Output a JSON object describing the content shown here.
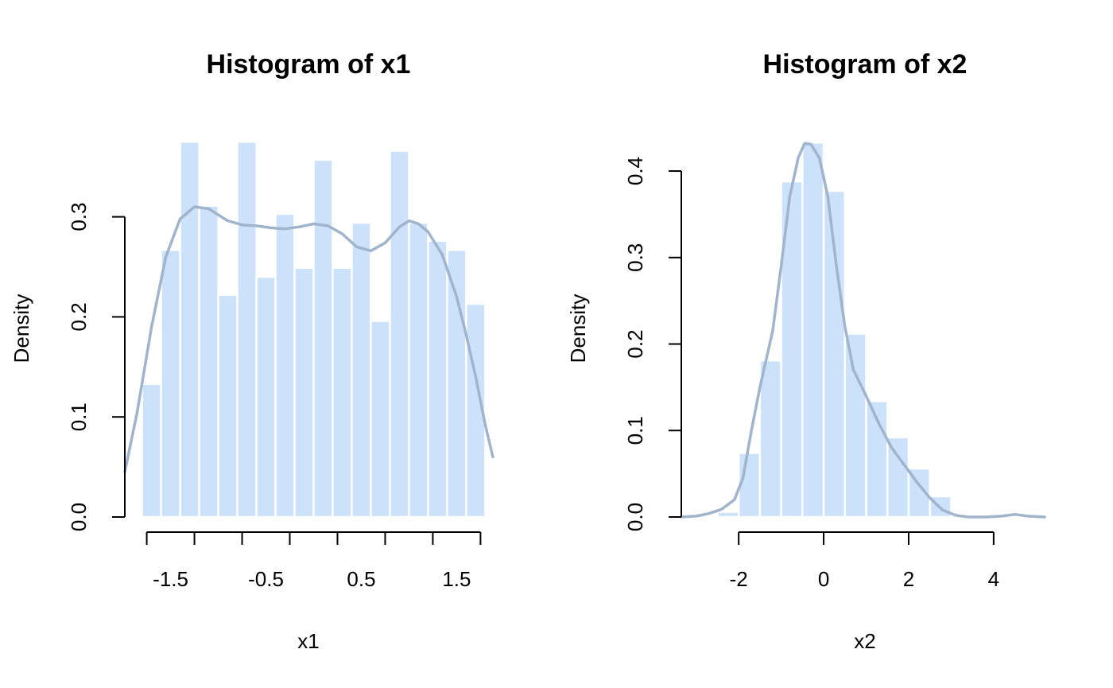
{
  "colors": {
    "bar_fill": "#cce1fa",
    "bar_border": "#ffffff",
    "density_line": "#a0b4cc"
  },
  "chart_data": [
    {
      "type": "bar",
      "subtype": "histogram-with-density",
      "title": "Histogram of x1",
      "xlabel": "x1",
      "ylabel": "Density",
      "xlim": [
        -1.98,
        1.88
      ],
      "ylim": [
        0,
        0.376
      ],
      "xticks": [
        -1.75,
        -1.25,
        -0.75,
        -0.25,
        0.25,
        0.75,
        1.25,
        1.75
      ],
      "xtick_labels": [
        "-1.5",
        "",
        "-0.5",
        "",
        "0.5",
        "",
        "1.5",
        ""
      ],
      "xtick_text_positions": [
        -1.5,
        -0.5,
        0.5,
        1.5
      ],
      "yticks": [
        0.0,
        0.1,
        0.2,
        0.3
      ],
      "ytick_labels": [
        "0.0",
        "0.1",
        "0.2",
        "0.3"
      ],
      "bins": [
        {
          "x0": -1.8,
          "x1": -1.6,
          "density": 0.133
        },
        {
          "x0": -1.6,
          "x1": -1.4,
          "density": 0.267
        },
        {
          "x0": -1.4,
          "x1": -1.2,
          "density": 0.375
        },
        {
          "x0": -1.2,
          "x1": -1.0,
          "density": 0.311
        },
        {
          "x0": -1.0,
          "x1": -0.8,
          "density": 0.222
        },
        {
          "x0": -0.8,
          "x1": -0.6,
          "density": 0.375
        },
        {
          "x0": -0.6,
          "x1": -0.4,
          "density": 0.24
        },
        {
          "x0": -0.4,
          "x1": -0.2,
          "density": 0.303
        },
        {
          "x0": -0.2,
          "x1": 0.0,
          "density": 0.249
        },
        {
          "x0": 0.0,
          "x1": 0.2,
          "density": 0.357
        },
        {
          "x0": 0.2,
          "x1": 0.4,
          "density": 0.249
        },
        {
          "x0": 0.4,
          "x1": 0.6,
          "density": 0.294
        },
        {
          "x0": 0.6,
          "x1": 0.8,
          "density": 0.196
        },
        {
          "x0": 0.8,
          "x1": 1.0,
          "density": 0.366
        },
        {
          "x0": 1.0,
          "x1": 1.2,
          "density": 0.294
        },
        {
          "x0": 1.2,
          "x1": 1.4,
          "density": 0.276
        },
        {
          "x0": 1.4,
          "x1": 1.6,
          "density": 0.267
        },
        {
          "x0": 1.6,
          "x1": 1.8,
          "density": 0.213
        }
      ],
      "density_curve": {
        "x": [
          -1.98,
          -1.85,
          -1.7,
          -1.55,
          -1.4,
          -1.25,
          -1.1,
          -1.0,
          -0.9,
          -0.75,
          -0.6,
          -0.45,
          -0.3,
          -0.15,
          0.0,
          0.15,
          0.3,
          0.45,
          0.6,
          0.75,
          0.9,
          1.0,
          1.1,
          1.2,
          1.35,
          1.5,
          1.6,
          1.7,
          1.8,
          1.88
        ],
        "y": [
          0.045,
          0.105,
          0.19,
          0.26,
          0.298,
          0.31,
          0.308,
          0.302,
          0.296,
          0.292,
          0.291,
          0.289,
          0.288,
          0.29,
          0.293,
          0.291,
          0.283,
          0.27,
          0.266,
          0.274,
          0.29,
          0.296,
          0.293,
          0.285,
          0.262,
          0.22,
          0.182,
          0.14,
          0.092,
          0.06
        ]
      }
    },
    {
      "type": "bar",
      "subtype": "histogram-with-density",
      "title": "Histogram of x2",
      "xlabel": "x2",
      "ylabel": "Density",
      "xlim": [
        -3.35,
        5.2
      ],
      "ylim": [
        0,
        0.435
      ],
      "xticks": [
        -2,
        0,
        2,
        4
      ],
      "xtick_labels": [
        "-2",
        "0",
        "2",
        "4"
      ],
      "xtick_text_positions": [
        -2,
        0,
        2,
        4
      ],
      "yticks": [
        0.0,
        0.1,
        0.2,
        0.3,
        0.4
      ],
      "ytick_labels": [
        "0.0",
        "0.1",
        "0.2",
        "0.3",
        "0.4"
      ],
      "bins": [
        {
          "x0": -2.5,
          "x1": -2.0,
          "density": 0.006
        },
        {
          "x0": -2.0,
          "x1": -1.5,
          "density": 0.074
        },
        {
          "x0": -1.5,
          "x1": -1.0,
          "density": 0.181
        },
        {
          "x0": -1.0,
          "x1": -0.5,
          "density": 0.388
        },
        {
          "x0": -0.5,
          "x1": 0.0,
          "density": 0.433
        },
        {
          "x0": 0.0,
          "x1": 0.5,
          "density": 0.377
        },
        {
          "x0": 0.5,
          "x1": 1.0,
          "density": 0.212
        },
        {
          "x0": 1.0,
          "x1": 1.5,
          "density": 0.134
        },
        {
          "x0": 1.5,
          "x1": 2.0,
          "density": 0.092
        },
        {
          "x0": 2.0,
          "x1": 2.5,
          "density": 0.056
        },
        {
          "x0": 2.5,
          "x1": 3.0,
          "density": 0.024
        }
      ],
      "density_curve": {
        "x": [
          -3.35,
          -3.0,
          -2.7,
          -2.4,
          -2.1,
          -1.9,
          -1.7,
          -1.5,
          -1.2,
          -1.0,
          -0.8,
          -0.6,
          -0.45,
          -0.3,
          -0.1,
          0.1,
          0.3,
          0.5,
          0.7,
          1.0,
          1.3,
          1.6,
          1.9,
          2.2,
          2.5,
          2.8,
          3.1,
          3.4,
          3.8,
          4.2,
          4.5,
          4.8,
          5.2
        ],
        "y": [
          0.0,
          0.001,
          0.004,
          0.009,
          0.02,
          0.045,
          0.1,
          0.15,
          0.215,
          0.29,
          0.37,
          0.415,
          0.432,
          0.431,
          0.415,
          0.37,
          0.29,
          0.22,
          0.17,
          0.14,
          0.108,
          0.08,
          0.06,
          0.04,
          0.022,
          0.008,
          0.002,
          0.0,
          0.0,
          0.001,
          0.003,
          0.001,
          0.0
        ]
      }
    }
  ]
}
